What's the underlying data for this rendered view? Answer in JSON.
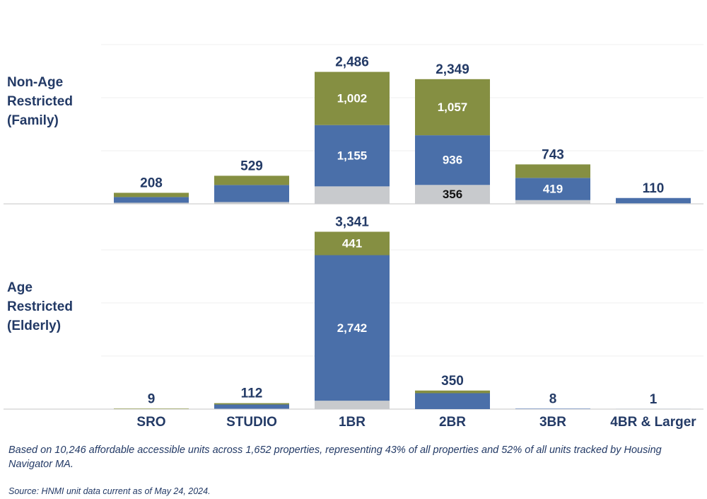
{
  "chart_data": [
    {
      "type": "stacked_bar",
      "title": "Non-Age Restricted (Family)",
      "ylim": [
        0,
        3000
      ],
      "yticks": [
        0,
        1000,
        2000,
        3000
      ],
      "grid": true,
      "series": [
        {
          "color": "#c8cacd",
          "values": [
            21,
            34,
            329,
            356,
            70,
            10
          ],
          "value_labels": [
            null,
            null,
            null,
            "356",
            null,
            null
          ]
        },
        {
          "color": "#4a6fa9",
          "values": [
            107,
            321,
            1155,
            936,
            419,
            100
          ],
          "value_labels": [
            null,
            null,
            "1,155",
            "936",
            "419",
            null
          ]
        },
        {
          "color": "#858f42",
          "values": [
            80,
            174,
            1002,
            1057,
            254,
            0
          ],
          "value_labels": [
            null,
            null,
            "1,002",
            "1,057",
            null,
            null
          ]
        }
      ],
      "totals": [
        208,
        529,
        2486,
        2349,
        743,
        110
      ],
      "total_labels": [
        "208",
        "529",
        "2,486",
        "2,349",
        "743",
        "110"
      ]
    },
    {
      "type": "stacked_bar",
      "title": "Age Restricted (Elderly)",
      "categories": [
        "SRO",
        "STUDIO",
        "1BR",
        "2BR",
        "3BR",
        "4BR & Larger"
      ],
      "ylim": [
        0,
        3000
      ],
      "yticks": [
        0,
        1000,
        2000,
        3000
      ],
      "grid": true,
      "series": [
        {
          "color": "#c8cacd",
          "values": [
            0,
            7,
            158,
            0,
            0,
            0
          ],
          "value_labels": [
            null,
            null,
            null,
            null,
            null,
            null
          ]
        },
        {
          "color": "#4a6fa9",
          "values": [
            0,
            80,
            2742,
            300,
            8,
            1
          ],
          "value_labels": [
            null,
            null,
            "2,742",
            null,
            null,
            null
          ]
        },
        {
          "color": "#858f42",
          "values": [
            9,
            25,
            441,
            50,
            0,
            0
          ],
          "value_labels": [
            null,
            null,
            "441",
            null,
            null,
            null
          ]
        }
      ],
      "totals": [
        9,
        112,
        3341,
        350,
        8,
        1
      ],
      "total_labels": [
        "9",
        "112",
        "3,341",
        "350",
        "8",
        "1"
      ]
    }
  ],
  "note": "Based on 10,246 affordable accessible units across 1,652 properties, representing 43% of all properties and 52% of all units tracked by Housing Navigator MA.",
  "source": "Source: HNMI unit data current as of May 24, 2024."
}
